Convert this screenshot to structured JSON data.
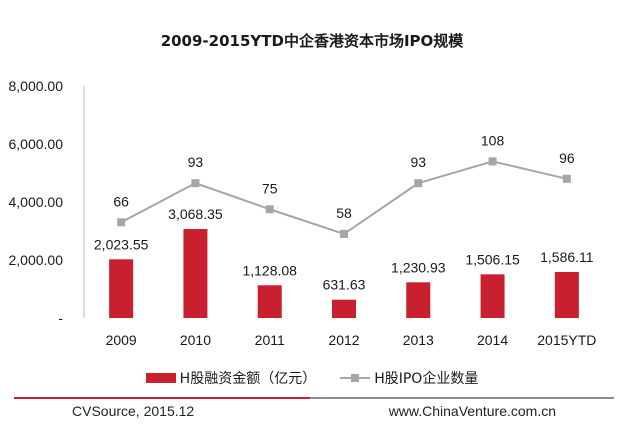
{
  "chart_data": {
    "type": "bar+line",
    "title": "2009-2015YTD中企香港资本市场IPO规模",
    "categories": [
      "2009",
      "2010",
      "2011",
      "2012",
      "2013",
      "2014",
      "2015YTD"
    ],
    "series": [
      {
        "name": "H股融资金额（亿元）",
        "kind": "bar",
        "color": "#c8202e",
        "values": [
          2023.55,
          3068.35,
          1128.08,
          631.63,
          1230.93,
          1506.15,
          1586.11
        ],
        "labels": [
          "2,023.55",
          "3,068.35",
          "1,128.08",
          "631.63",
          "1,230.93",
          "1,506.15",
          "1,586.11"
        ]
      },
      {
        "name": "H股IPO企业数量",
        "kind": "line",
        "color": "#a6a6a6",
        "values": [
          66,
          93,
          75,
          58,
          93,
          108,
          96
        ],
        "labels": [
          "66",
          "93",
          "75",
          "58",
          "93",
          "108",
          "96"
        ],
        "axis_max": 160
      }
    ],
    "y_axis": {
      "min": 0,
      "max": 8000,
      "ticks": [
        0,
        2000,
        4000,
        6000,
        8000
      ],
      "tick_labels": [
        "-",
        "2,000.00",
        "4,000.00",
        "6,000.00",
        "8,000.00"
      ]
    },
    "xlabel": "",
    "ylabel": "",
    "grid": false,
    "legend": "bottom"
  },
  "footer": {
    "source": "CVSource, 2015.12",
    "website": "www.ChinaVenture.com.cn"
  },
  "colors": {
    "rule_left": "#c8202e",
    "rule_right": "#8c8c8c"
  }
}
